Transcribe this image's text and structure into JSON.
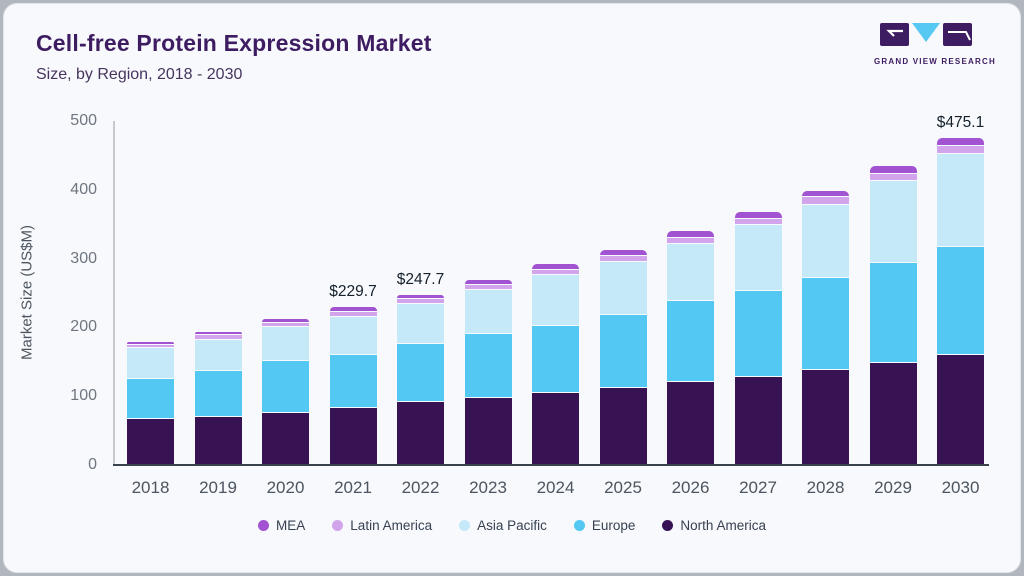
{
  "header": {
    "title": "Cell-free Protein Expression Market",
    "subtitle": "Size, by Region, 2018 - 2030"
  },
  "logo": {
    "brand": "GRAND VIEW RESEARCH",
    "dark_color": "#3e1c62",
    "accent_color": "#56c8f2"
  },
  "chart_data": {
    "type": "bar",
    "stacked": true,
    "title": "Cell-free Protein Expression Market Size, by Region, 2018 - 2030",
    "ylabel": "Market Size (US$M)",
    "ylim": [
      0,
      500
    ],
    "yticks": [
      0,
      100,
      200,
      300,
      400,
      500
    ],
    "grid": false,
    "legend_position": "bottom",
    "categories": [
      "2018",
      "2019",
      "2020",
      "2021",
      "2022",
      "2023",
      "2024",
      "2025",
      "2026",
      "2027",
      "2028",
      "2029",
      "2030"
    ],
    "series": [
      {
        "name": "North America",
        "color": "#371353",
        "values": [
          68,
          71,
          77.7,
          84.5,
          92.9,
          99.5,
          106,
          114,
          122,
          129,
          139,
          149.5,
          161.5
        ]
      },
      {
        "name": "Europe",
        "color": "#52c8f2",
        "values": [
          58.3,
          66.5,
          74.3,
          76.5,
          84.4,
          92,
          97.5,
          106,
          118,
          125,
          135,
          146,
          157
        ]
      },
      {
        "name": "Asia Pacific",
        "color": "#c6e9fa",
        "values": [
          44.6,
          46.2,
          50.1,
          55.5,
          58.7,
          64.5,
          74,
          77,
          83,
          96,
          106,
          118.5,
          134.6
        ]
      },
      {
        "name": "Latin America",
        "color": "#d2a4ec",
        "values": [
          5.0,
          6.3,
          6.2,
          7.0,
          6.5,
          7.5,
          8.0,
          8.5,
          9.0,
          9.5,
          10.5,
          11,
          12
        ]
      },
      {
        "name": "MEA",
        "color": "#a153d1",
        "values": [
          2.9,
          3.5,
          3.8,
          6.2,
          5.2,
          6.0,
          6.5,
          7.0,
          7.5,
          8.0,
          8.5,
          9,
          10
        ]
      }
    ],
    "value_labels": [
      {
        "category": "2021",
        "text": "$229.7"
      },
      {
        "category": "2022",
        "text": "$247.7"
      },
      {
        "category": "2030",
        "text": "$475.1"
      }
    ],
    "legend_order": [
      "MEA",
      "Latin America",
      "Asia Pacific",
      "Europe",
      "North America"
    ]
  }
}
